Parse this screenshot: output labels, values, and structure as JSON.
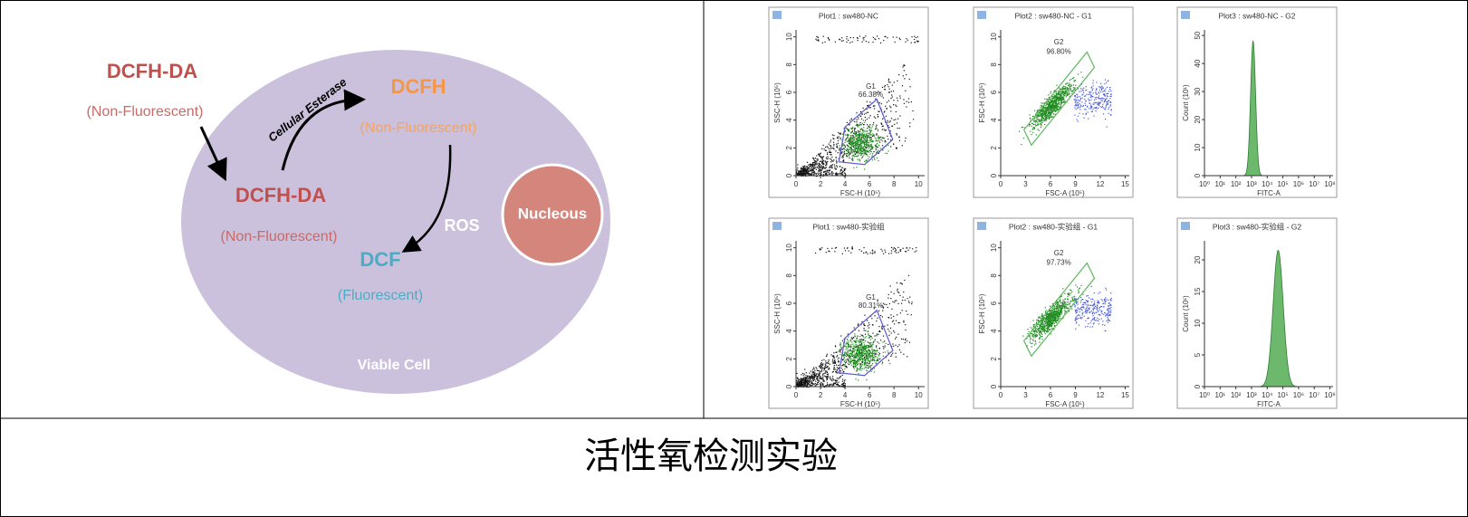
{
  "diagram": {
    "outer_label": "DCFH-DA",
    "outer_note": "(Non-Fluorescent)",
    "enzyme": "Cellular Esterase",
    "dcfh": "DCFH",
    "dcfh_note": "(Non-Fluorescent)",
    "inner_label": "DCFH-DA",
    "inner_note": "(Non-Fluorescent)",
    "ros": "ROS",
    "dcf": "DCF",
    "dcf_note": "(Fluorescent)",
    "nucleus": "Nucleous",
    "cell": "Viable Cell"
  },
  "plots": [
    {
      "type": "scatter",
      "title": "Plot1 : sw480-NC",
      "xlabel": "FSC-H (10⁵)",
      "ylabel": "SSC-H (10⁵)",
      "xlim": [
        0,
        10.5
      ],
      "ylim": [
        0,
        10.5
      ],
      "xticks": [
        0,
        2,
        4,
        6,
        8,
        10
      ],
      "yticks": [
        0,
        2,
        4,
        6,
        8,
        10
      ],
      "gate": "G1",
      "percent": "66.38%"
    },
    {
      "type": "density",
      "title": "Plot2 : sw480-NC - G1",
      "xlabel": "FSC-A (10⁵)",
      "ylabel": "FSC-H (10⁵)",
      "xlim": [
        0,
        15.5
      ],
      "ylim": [
        0,
        10.5
      ],
      "xticks": [
        0,
        3,
        6,
        9,
        12,
        15
      ],
      "yticks": [
        0,
        2,
        4,
        6,
        8,
        10
      ],
      "gate": "G2",
      "percent": "96.80%"
    },
    {
      "type": "histogram",
      "title": "Plot3 : sw480-NC - G2",
      "xlabel": "FITC-A",
      "ylabel": "Count (10¹)",
      "xlim": [
        0,
        8.2
      ],
      "ylim": [
        0,
        52
      ],
      "xticks": [
        {
          "value": 0,
          "label": "10⁰"
        },
        {
          "value": 1,
          "label": "10¹"
        },
        {
          "value": 2,
          "label": "10²"
        },
        {
          "value": 3,
          "label": "10³"
        },
        {
          "value": 4,
          "label": "10⁴"
        },
        {
          "value": 5,
          "label": "10⁵"
        },
        {
          "value": 6,
          "label": "10⁶"
        },
        {
          "value": 7,
          "label": "10⁷"
        },
        {
          "value": 8,
          "label": "10⁸"
        }
      ],
      "yticks": [
        0,
        10,
        20,
        30,
        40,
        50
      ],
      "peak_x": 3.1,
      "peak_count": 48
    },
    {
      "type": "scatter",
      "title": "Plot1 : sw480-实验组",
      "xlabel": "FSC-H (10⁵)",
      "ylabel": "SSC-H (10⁵)",
      "xlim": [
        0,
        10.5
      ],
      "ylim": [
        0,
        10.5
      ],
      "xticks": [
        0,
        2,
        4,
        6,
        8,
        10
      ],
      "yticks": [
        0,
        2,
        4,
        6,
        8,
        10
      ],
      "gate": "G1",
      "percent": "80.31%"
    },
    {
      "type": "density",
      "title": "Plot2 : sw480-实验组 - G1",
      "xlabel": "FSC-A (10⁵)",
      "ylabel": "FSC-H (10⁵)",
      "xlim": [
        0,
        15.5
      ],
      "ylim": [
        0,
        10.5
      ],
      "xticks": [
        0,
        3,
        6,
        9,
        12,
        15
      ],
      "yticks": [
        0,
        2,
        4,
        6,
        8,
        10
      ],
      "gate": "G2",
      "percent": "97.73%"
    },
    {
      "type": "histogram",
      "title": "Plot3 : sw480-实验组 - G2",
      "xlabel": "FITC-A",
      "ylabel": "Count (10¹)",
      "xlim": [
        0,
        8.2
      ],
      "ylim": [
        0,
        23
      ],
      "xticks": [
        {
          "value": 0,
          "label": "10⁰"
        },
        {
          "value": 1,
          "label": "10¹"
        },
        {
          "value": 2,
          "label": "10²"
        },
        {
          "value": 3,
          "label": "10³"
        },
        {
          "value": 4,
          "label": "10⁴"
        },
        {
          "value": 5,
          "label": "10⁵"
        },
        {
          "value": 6,
          "label": "10⁶"
        },
        {
          "value": 7,
          "label": "10⁷"
        },
        {
          "value": 8,
          "label": "10⁸"
        }
      ],
      "yticks": [
        0,
        5,
        10,
        15,
        20
      ],
      "peak_x": 4.7,
      "peak_count": 21.5
    }
  ],
  "caption": "活性氧检测实验"
}
